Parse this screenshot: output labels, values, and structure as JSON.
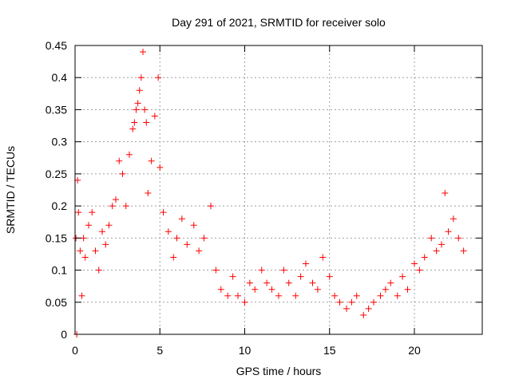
{
  "chart_data": {
    "type": "scatter",
    "title": "Day 291 of 2021, SRMTID for receiver solo",
    "xlabel": "GPS time / hours",
    "ylabel": "SRMTID / TECUs",
    "xlim": [
      0,
      24
    ],
    "ylim": [
      0,
      0.45
    ],
    "x_ticks": [
      0,
      5,
      10,
      15,
      20
    ],
    "x_tick_labels": [
      "0",
      "5",
      "10",
      "15",
      "20"
    ],
    "y_ticks": [
      0,
      0.05,
      0.1,
      0.15,
      0.2,
      0.25,
      0.3,
      0.35,
      0.4,
      0.45
    ],
    "y_tick_labels": [
      "0",
      "0.05",
      "0.1",
      "0.15",
      "0.2",
      "0.25",
      "0.3",
      "0.35",
      "0.4",
      "0.45"
    ],
    "grid": true,
    "marker": "+",
    "series": [
      {
        "name": "SRMTID",
        "color": "#ff0000",
        "x": [
          0.05,
          0.1,
          0.15,
          0.2,
          0.3,
          0.4,
          0.5,
          0.6,
          0.8,
          1.0,
          1.2,
          1.4,
          1.6,
          1.8,
          2.0,
          2.2,
          2.4,
          2.6,
          2.8,
          3.0,
          3.2,
          3.4,
          3.5,
          3.6,
          3.7,
          3.8,
          3.9,
          4.0,
          4.1,
          4.2,
          4.3,
          4.5,
          4.7,
          4.9,
          5.0,
          5.2,
          5.5,
          5.8,
          6.0,
          6.3,
          6.6,
          7.0,
          7.3,
          7.6,
          8.0,
          8.3,
          8.6,
          9.0,
          9.3,
          9.6,
          10.0,
          10.3,
          10.6,
          11.0,
          11.3,
          11.6,
          12.0,
          12.3,
          12.6,
          13.0,
          13.3,
          13.6,
          14.0,
          14.3,
          14.6,
          15.0,
          15.3,
          15.6,
          16.0,
          16.3,
          16.6,
          17.0,
          17.3,
          17.6,
          18.0,
          18.3,
          18.6,
          19.0,
          19.3,
          19.6,
          20.0,
          20.3,
          20.6,
          21.0,
          21.3,
          21.6,
          21.8,
          22.0,
          22.3,
          22.6,
          22.9
        ],
        "y": [
          0.15,
          0.0,
          0.24,
          0.19,
          0.13,
          0.06,
          0.15,
          0.12,
          0.17,
          0.19,
          0.13,
          0.1,
          0.16,
          0.14,
          0.17,
          0.2,
          0.21,
          0.27,
          0.25,
          0.2,
          0.28,
          0.32,
          0.33,
          0.35,
          0.36,
          0.38,
          0.4,
          0.44,
          0.35,
          0.33,
          0.22,
          0.27,
          0.34,
          0.4,
          0.26,
          0.19,
          0.16,
          0.12,
          0.15,
          0.18,
          0.14,
          0.17,
          0.13,
          0.15,
          0.2,
          0.1,
          0.07,
          0.06,
          0.09,
          0.06,
          0.05,
          0.08,
          0.07,
          0.1,
          0.08,
          0.07,
          0.06,
          0.1,
          0.08,
          0.06,
          0.09,
          0.11,
          0.08,
          0.07,
          0.12,
          0.09,
          0.06,
          0.05,
          0.04,
          0.05,
          0.06,
          0.03,
          0.04,
          0.05,
          0.06,
          0.07,
          0.08,
          0.06,
          0.09,
          0.07,
          0.11,
          0.1,
          0.12,
          0.15,
          0.13,
          0.14,
          0.22,
          0.16,
          0.18,
          0.15,
          0.13
        ]
      }
    ]
  }
}
